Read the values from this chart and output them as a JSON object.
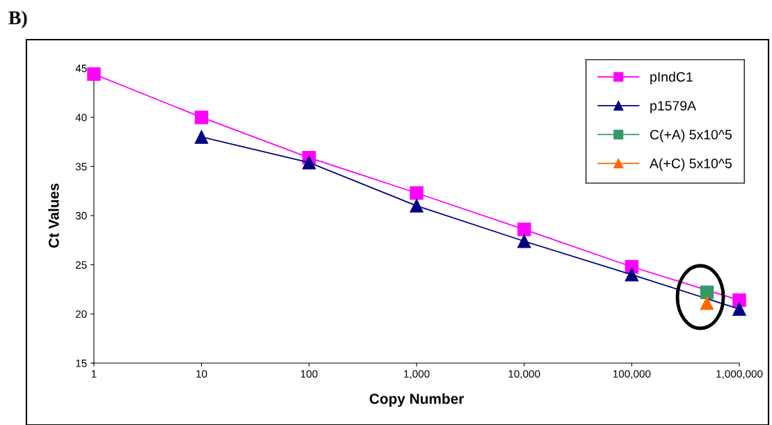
{
  "chart_data": {
    "type": "line",
    "xlabel": "Copy Number",
    "ylabel": "Ct Values",
    "annotations": [
      "B)"
    ],
    "log": "x",
    "xlim": [
      1,
      1000000
    ],
    "xticks": [
      1,
      10,
      100,
      {
        "value": 1000,
        "label": "1,000"
      },
      {
        "value": 10000,
        "label": "10,000"
      },
      {
        "value": 100000,
        "label": "100,000"
      },
      {
        "value": 1000000,
        "label": "1,000,000"
      }
    ],
    "ylim": [
      15,
      45
    ],
    "yticks": [
      15,
      20,
      25,
      30,
      35,
      40,
      45
    ],
    "grid": false,
    "legend": "top right",
    "series": [
      {
        "name": "pIndC1",
        "color": "#ff00ff",
        "marker": "square",
        "x": [
          1,
          10,
          100,
          1000,
          10000,
          100000,
          1000000
        ],
        "values": [
          44.4,
          40.0,
          35.9,
          32.3,
          28.6,
          24.8,
          21.4
        ]
      },
      {
        "name": "p1579A",
        "color": "#000080",
        "marker": "triangle",
        "x": [
          10,
          100,
          1000,
          10000,
          100000,
          1000000
        ],
        "values": [
          38.0,
          35.4,
          31.0,
          27.4,
          24.0,
          20.5
        ]
      },
      {
        "name": "C(+A) 5x10^5",
        "color": "#339966",
        "marker": "square",
        "x": [
          500000
        ],
        "values": [
          22.2
        ]
      },
      {
        "name": "A(+C) 5x10^5",
        "color": "#ff6600",
        "marker": "triangle",
        "x": [
          500000
        ],
        "values": [
          21.1
        ]
      }
    ]
  }
}
